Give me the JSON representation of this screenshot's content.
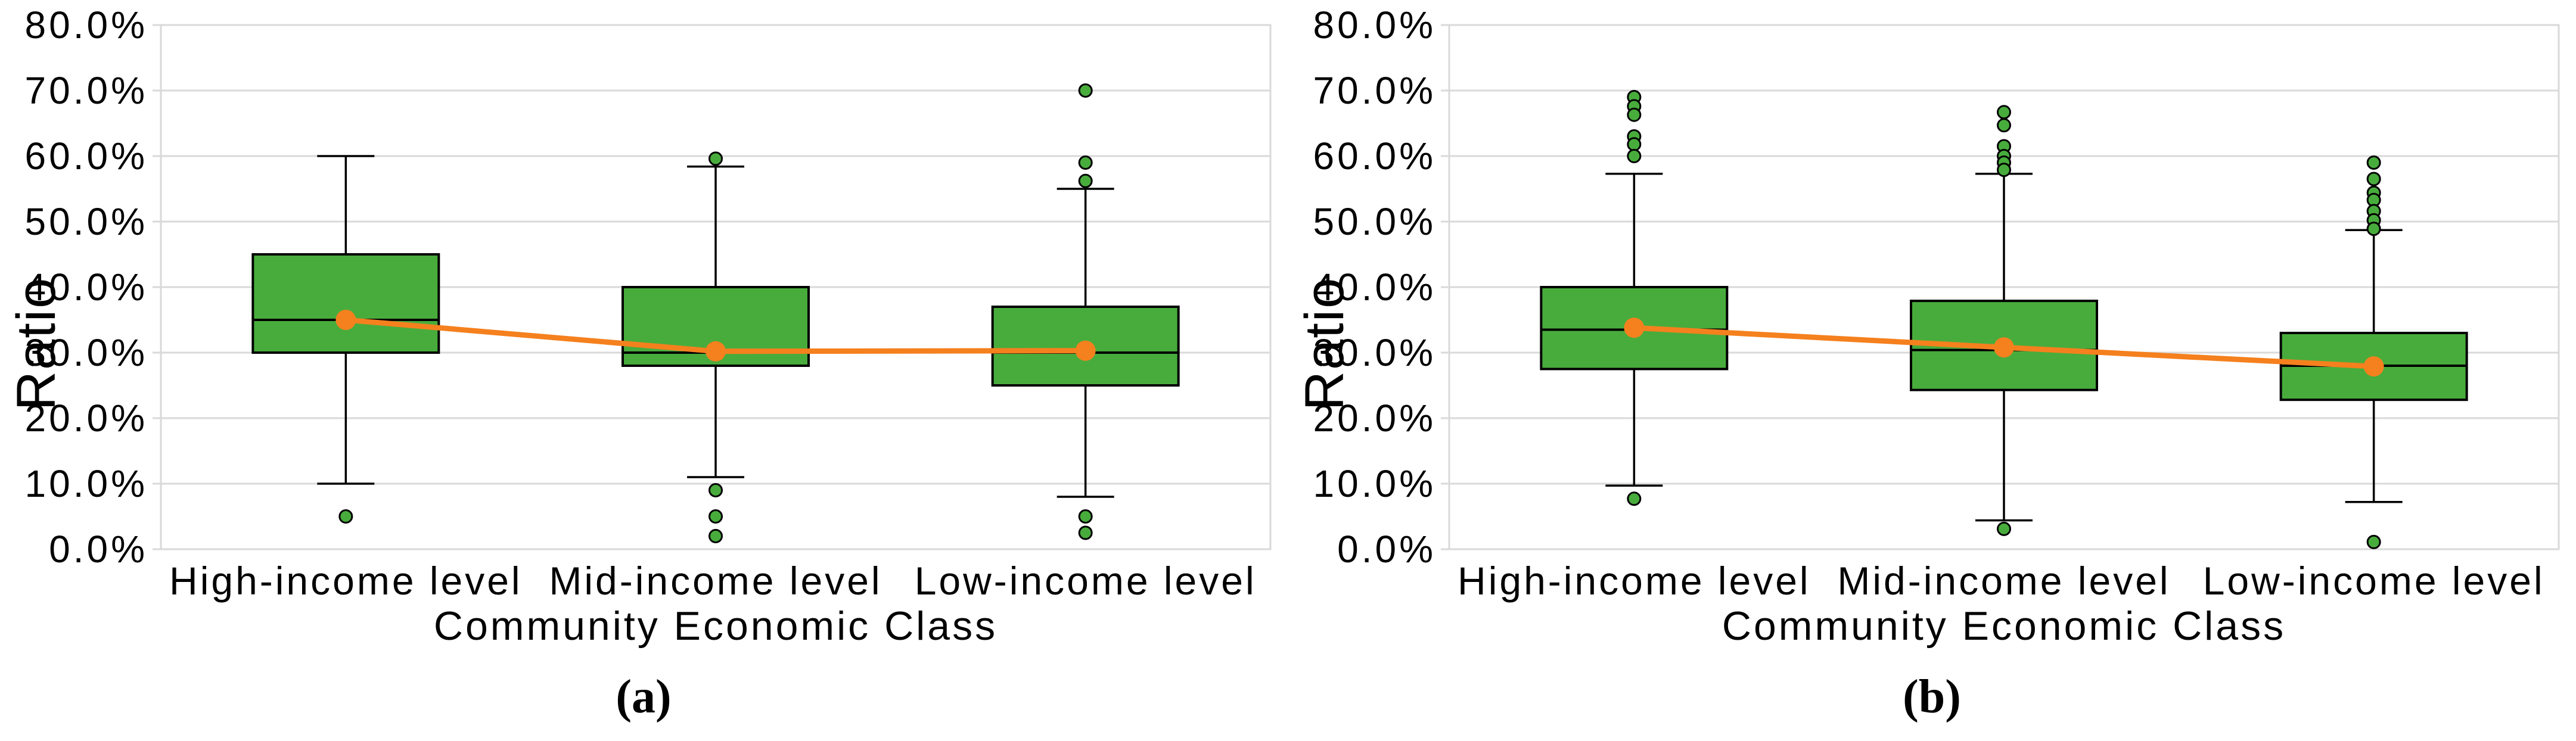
{
  "figure": {
    "background_color": "#ffffff",
    "panels": [
      "a",
      "b"
    ]
  },
  "style": {
    "box_fill": "#48AC3C",
    "box_stroke": "#000000",
    "outlier_fill": "#48AC3C",
    "outlier_stroke": "#000000",
    "mean_color": "#F5801E",
    "gridline_color": "#D9D9D9",
    "frame_color": "#D9D9D9",
    "text_color": "#000000"
  },
  "chart_data": [
    {
      "panel": "a",
      "type": "boxplot",
      "caption": "(a)",
      "xlabel": "Community Economic Class",
      "ylabel": "Ratio",
      "ylim": [
        0,
        80
      ],
      "ytick_step": 10,
      "ytick_labels": [
        "0.0%",
        "10.0%",
        "20.0%",
        "30.0%",
        "40.0%",
        "50.0%",
        "60.0%",
        "70.0%",
        "80.0%"
      ],
      "grid": true,
      "legend": "none",
      "categories": [
        "High-income level",
        "Mid-income level",
        "Low-income level"
      ],
      "boxes": [
        {
          "category": "High-income level",
          "whisker_low": 10.0,
          "q1": 30.0,
          "median": 35.0,
          "q3": 45.0,
          "whisker_high": 60.0,
          "mean": 35.0,
          "outliers_low": [
            5.0
          ],
          "outliers_high": []
        },
        {
          "category": "Mid-income level",
          "whisker_low": 11.0,
          "q1": 28.0,
          "median": 30.0,
          "q3": 40.0,
          "whisker_high": 58.4,
          "mean": 30.2,
          "outliers_low": [
            9.0,
            5.0,
            2.0
          ],
          "outliers_high": [
            59.6
          ]
        },
        {
          "category": "Low-income level",
          "whisker_low": 8.0,
          "q1": 25.0,
          "median": 30.0,
          "q3": 37.0,
          "whisker_high": 55.0,
          "mean": 30.3,
          "outliers_low": [
            5.0,
            2.5
          ],
          "outliers_high": [
            70.0,
            59.0,
            56.2
          ]
        }
      ],
      "mean_line": [
        35.0,
        30.2,
        30.3
      ]
    },
    {
      "panel": "b",
      "type": "boxplot",
      "caption": "(b)",
      "xlabel": "Community Economic Class",
      "ylabel": "Ratio",
      "ylim": [
        0,
        80
      ],
      "ytick_step": 10,
      "ytick_labels": [
        "0.0%",
        "10.0%",
        "20.0%",
        "30.0%",
        "40.0%",
        "50.0%",
        "60.0%",
        "70.0%",
        "80.0%"
      ],
      "grid": true,
      "legend": "none",
      "categories": [
        "High-income level",
        "Mid-income level",
        "Low-income level"
      ],
      "boxes": [
        {
          "category": "High-income level",
          "whisker_low": 9.7,
          "q1": 27.5,
          "median": 33.5,
          "q3": 40.0,
          "whisker_high": 57.3,
          "mean": 33.8,
          "outliers_low": [
            7.7
          ],
          "outliers_high": [
            69.0,
            67.6,
            66.3,
            63.0,
            61.8,
            60.0
          ]
        },
        {
          "category": "Mid-income level",
          "whisker_low": 4.4,
          "q1": 24.3,
          "median": 30.4,
          "q3": 37.9,
          "whisker_high": 57.3,
          "mean": 30.8,
          "outliers_low": [
            3.1
          ],
          "outliers_high": [
            66.7,
            64.7,
            61.5,
            60.0,
            59.0,
            57.9
          ]
        },
        {
          "category": "Low-income level",
          "whisker_low": 7.2,
          "q1": 22.8,
          "median": 28.0,
          "q3": 33.0,
          "whisker_high": 48.7,
          "mean": 27.9,
          "outliers_low": [
            1.1
          ],
          "outliers_high": [
            59.0,
            56.5,
            54.4,
            53.3,
            51.6,
            50.2,
            48.9
          ]
        }
      ],
      "mean_line": [
        33.8,
        30.8,
        27.9
      ]
    }
  ]
}
